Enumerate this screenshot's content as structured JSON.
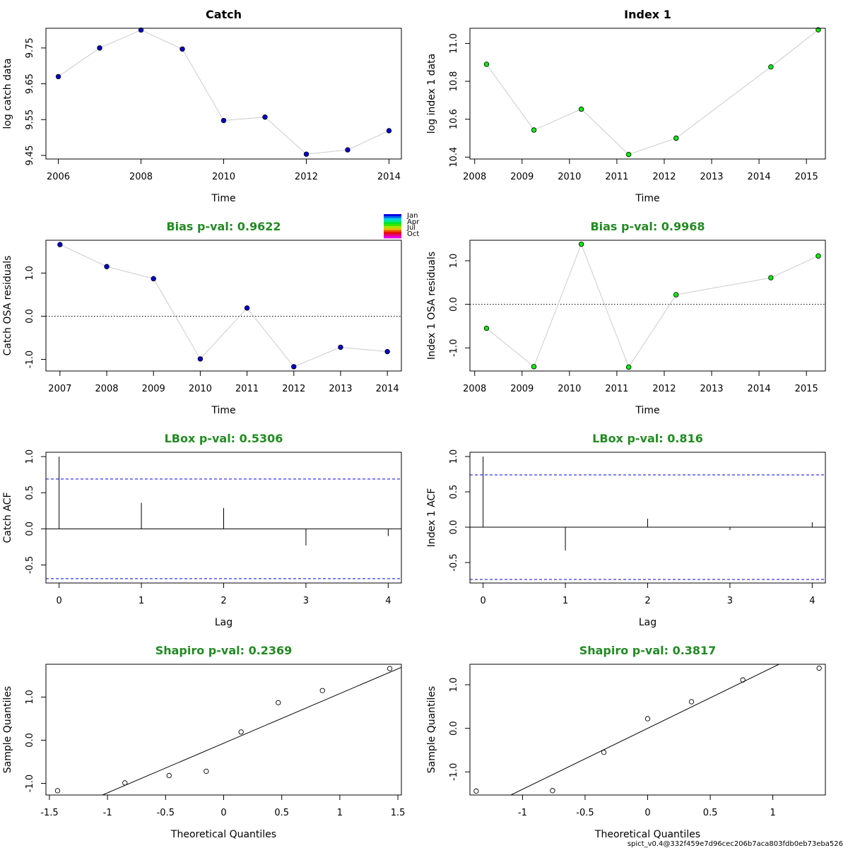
{
  "footer": "spict_v0.4@332f459e7d96cec206b7aca803fdb0eb73eba526",
  "legend": {
    "months": [
      "Jan",
      "Apr",
      "Jul",
      "Oct"
    ]
  },
  "colors": {
    "catch": "#0000cd",
    "index": "#00ee00",
    "title_green": "#228b22",
    "ci_line": "#0000ff",
    "connector": "#cccccc"
  },
  "chart_data": [
    {
      "type": "line",
      "title": "Catch",
      "xlabel": "Time",
      "ylabel": "log catch data",
      "xlim": [
        2005.7,
        2014.3
      ],
      "ylim": [
        9.44,
        9.805
      ],
      "xticks": [
        2006,
        2008,
        2010,
        2012,
        2014
      ],
      "yticks": [
        9.45,
        9.55,
        9.65,
        9.75
      ],
      "ytick_labels": [
        "9.45",
        "9.55",
        "9.65",
        "9.75"
      ],
      "marker_color": "#0000cd",
      "x": [
        2006,
        2007,
        2008,
        2009,
        2010,
        2011,
        2012,
        2013,
        2014
      ],
      "y": [
        9.67,
        9.75,
        9.8,
        9.747,
        9.5475,
        9.557,
        9.4535,
        9.4655,
        9.519
      ]
    },
    {
      "type": "line",
      "title": "Index 1",
      "xlabel": "Time",
      "ylabel": "log index 1 data",
      "xlim": [
        2007.9,
        2015.4
      ],
      "ylim": [
        10.39,
        11.08
      ],
      "xticks": [
        2008,
        2009,
        2010,
        2011,
        2012,
        2013,
        2014,
        2015
      ],
      "yticks": [
        10.4,
        10.6,
        10.8,
        11.0
      ],
      "ytick_labels": [
        "10.4",
        "10.6",
        "10.8",
        "11.0"
      ],
      "marker_color": "#00ee00",
      "x": [
        2008.25,
        2009.25,
        2010.25,
        2011.25,
        2012.25,
        2014.25,
        2015.25
      ],
      "y": [
        10.89,
        10.543,
        10.653,
        10.414,
        10.5,
        10.876,
        11.072
      ]
    },
    {
      "type": "line",
      "title": "Bias p-val: 0.9622",
      "xlabel": "Time",
      "ylabel": "Catch OSA residuals",
      "xlim": [
        2006.7,
        2014.3
      ],
      "ylim": [
        -1.27,
        1.76
      ],
      "xticks": [
        2007,
        2008,
        2009,
        2010,
        2011,
        2012,
        2013,
        2014
      ],
      "yticks": [
        -1.0,
        0.0,
        1.0
      ],
      "ytick_labels": [
        "-1.0",
        "0.0",
        "1.0"
      ],
      "hline": 0,
      "marker_color": "#0000cd",
      "x": [
        2007,
        2008,
        2009,
        2010,
        2011,
        2012,
        2013,
        2014
      ],
      "y": [
        1.66,
        1.15,
        0.87,
        -0.99,
        0.19,
        -1.17,
        -0.72,
        -0.82
      ]
    },
    {
      "type": "line",
      "title": "Bias p-val: 0.9968",
      "xlabel": "Time",
      "ylabel": "Index 1 OSA residuals",
      "xlim": [
        2007.9,
        2015.4
      ],
      "ylim": [
        -1.53,
        1.47
      ],
      "xticks": [
        2008,
        2009,
        2010,
        2011,
        2012,
        2013,
        2014,
        2015
      ],
      "yticks": [
        -1.0,
        0.0,
        1.0
      ],
      "ytick_labels": [
        "-1.0",
        "0.0",
        "1.0"
      ],
      "hline": 0,
      "marker_color": "#00ee00",
      "x": [
        2008.25,
        2009.25,
        2010.25,
        2011.25,
        2012.25,
        2014.25,
        2015.25
      ],
      "y": [
        -0.55,
        -1.43,
        1.38,
        -1.44,
        0.22,
        0.61,
        1.11
      ]
    },
    {
      "type": "bar",
      "title": "LBox p-val: 0.5306",
      "xlabel": "Lag",
      "ylabel": "Catch ACF",
      "xlim": [
        -0.16,
        4.16
      ],
      "ylim": [
        -0.75,
        1.06
      ],
      "xticks": [
        0,
        1,
        2,
        3,
        4
      ],
      "yticks": [
        -0.5,
        0.0,
        0.5,
        1.0
      ],
      "ytick_labels": [
        "-0.5",
        "0.0",
        "0.5",
        "1.0"
      ],
      "ci": 0.69,
      "lags": [
        0,
        1,
        2,
        3,
        4
      ],
      "values": [
        1.0,
        0.36,
        0.29,
        -0.23,
        -0.1
      ]
    },
    {
      "type": "bar",
      "title": "LBox p-val: 0.816",
      "xlabel": "Lag",
      "ylabel": "Index 1 ACF",
      "xlim": [
        -0.16,
        4.16
      ],
      "ylim": [
        -0.79,
        1.06
      ],
      "xticks": [
        0,
        1,
        2,
        3,
        4
      ],
      "yticks": [
        -0.5,
        0.0,
        0.5,
        1.0
      ],
      "ytick_labels": [
        "-0.5",
        "0.0",
        "0.5",
        "1.0"
      ],
      "ci": 0.74,
      "lags": [
        0,
        1,
        2,
        3,
        4
      ],
      "values": [
        1.0,
        -0.33,
        0.12,
        -0.04,
        0.07
      ]
    },
    {
      "type": "scatter",
      "title": "Shapiro p-val: 0.2369",
      "xlabel": "Theoretical Quantiles",
      "ylabel": "Sample Quantiles",
      "xlim": [
        -1.53,
        1.53
      ],
      "ylim": [
        -1.27,
        1.76
      ],
      "xticks": [
        -1.5,
        -1.0,
        -0.5,
        0.0,
        0.5,
        1.0,
        1.5
      ],
      "yticks": [
        -1.0,
        0.0,
        1.0
      ],
      "ytick_labels": [
        "-1.0",
        "0.0",
        "1.0"
      ],
      "x": [
        -1.43,
        -0.85,
        -0.47,
        -0.15,
        0.15,
        0.47,
        0.85,
        1.43
      ],
      "y": [
        -1.17,
        -0.99,
        -0.82,
        -0.72,
        0.19,
        0.87,
        1.15,
        1.66
      ],
      "qqline": {
        "slope": 1.15,
        "intercept": -0.07
      }
    },
    {
      "type": "scatter",
      "title": "Shapiro p-val: 0.3817",
      "xlabel": "Theoretical Quantiles",
      "ylabel": "Sample Quantiles",
      "xlim": [
        -1.42,
        1.42
      ],
      "ylim": [
        -1.53,
        1.47
      ],
      "xticks": [
        -1.0,
        -0.5,
        0.0,
        0.5,
        1.0
      ],
      "yticks": [
        -1.0,
        0.0,
        1.0
      ],
      "ytick_labels": [
        "-1.0",
        "0.0",
        "1.0"
      ],
      "x": [
        -1.37,
        -0.76,
        -0.35,
        0.0,
        0.35,
        0.76,
        1.37
      ],
      "y": [
        -1.44,
        -1.43,
        -0.55,
        0.22,
        0.61,
        1.11,
        1.38
      ],
      "qqline": {
        "slope": 1.4,
        "intercept": 0.0
      }
    }
  ]
}
